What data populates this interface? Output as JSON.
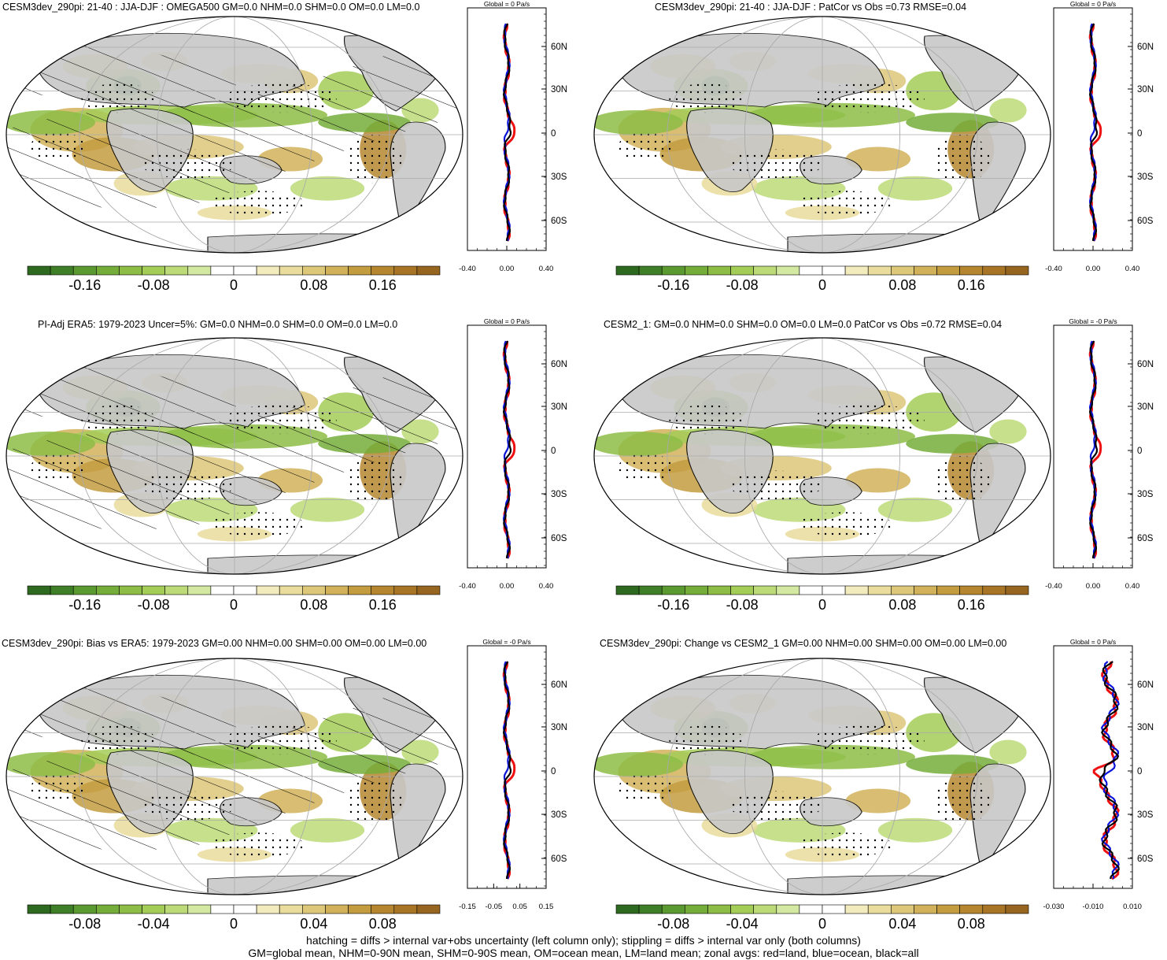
{
  "colors": {
    "palette": [
      "#2d6a1f",
      "#3f7f27",
      "#5b9a30",
      "#75ad3b",
      "#8dbd46",
      "#a3cd57",
      "#bcdb78",
      "#d3e8a0",
      "#ffffff",
      "#ffffff",
      "#f2ebbe",
      "#e9dc9c",
      "#ddc779",
      "#d1b25b",
      "#c49c40",
      "#b5862f",
      "#a87526",
      "#96651f"
    ],
    "land": "#c8c8c8",
    "red": "#ee1111",
    "blue": "#0a14d8",
    "black": "#000000"
  },
  "panels": [
    {
      "title": "CESM3dev_290pi: 21-40 : JJA-DJF : OMEGA500 GM=0.0 NHM=0.0 SHM=0.0 OM=0.0 LM=0.0",
      "zonal_title": "Global = 0 Pa/s",
      "zonal_ticks": [
        "-0.40",
        "0.00",
        "0.40"
      ],
      "cbar_ticks": [
        "-0.16",
        "-0.08",
        "0",
        "0.08",
        "0.16"
      ],
      "hatch": true
    },
    {
      "title": "CESM3dev_290pi: 21-40 : JJA-DJF : PatCor vs Obs =0.73 RMSE=0.04",
      "zonal_title": "Global = 0 Pa/s",
      "zonal_ticks": [
        "-0.40",
        "0.00",
        "0.40"
      ],
      "cbar_ticks": [
        "-0.16",
        "-0.08",
        "0",
        "0.08",
        "0.16"
      ],
      "hatch": false
    },
    {
      "title": "PI-Adj ERA5: 1979-2023 Uncer=5%: GM=0.0 NHM=0.0 SHM=0.0 OM=0.0 LM=0.0",
      "zonal_title": "Global = 0 Pa/s",
      "zonal_ticks": [
        "-0.40",
        "0.00",
        "0.40"
      ],
      "cbar_ticks": [
        "-0.16",
        "-0.08",
        "0",
        "0.08",
        "0.16"
      ],
      "hatch": true
    },
    {
      "title": "CESM2_1: GM=0.0 NHM=0.0 SHM=0.0 OM=0.0 LM=0.0 PatCor vs Obs =0.72 RMSE=0.04",
      "zonal_title": "Global = -0 Pa/s",
      "zonal_ticks": [
        "-0.40",
        "0.00",
        "0.40"
      ],
      "cbar_ticks": [
        "-0.16",
        "-0.08",
        "0",
        "0.08",
        "0.16"
      ],
      "hatch": false
    },
    {
      "title": "CESM3dev_290pi: Bias vs ERA5: 1979-2023 GM=0.00 NHM=0.00 SHM=0.00 OM=0.00 LM=0.00",
      "zonal_title": "Global = -0 Pa/s",
      "zonal_ticks": [
        "-0.15",
        "-0.05",
        "0.05",
        "0.15"
      ],
      "cbar_ticks": [
        "-0.08",
        "-0.04",
        "0",
        "0.04",
        "0.08"
      ],
      "hatch": true
    },
    {
      "title": "CESM3dev_290pi: Change vs CESM2_1 GM=0.00 NHM=0.00 SHM=0.00 OM=0.00 LM=0.00",
      "zonal_title": "Global = 0 Pa/s",
      "zonal_ticks": [
        "-0.030",
        "-0.010",
        "0.010"
      ],
      "cbar_ticks": [
        "-0.08",
        "-0.04",
        "0",
        "0.04",
        "0.08"
      ],
      "hatch": false
    }
  ],
  "lat_ticks": [
    "60N",
    "30N",
    "0",
    "30S",
    "60S"
  ],
  "footer": {
    "line1": "hatching = diffs > internal var+obs uncertainty (left column only); stippling = diffs > internal var only (both columns)",
    "line2": "GM=global mean, NHM=0-90N mean, SHM=0-90S mean, OM=ocean mean, LM=land mean; zonal avgs: red=land, blue=ocean, black=all"
  },
  "chart_data": [
    {
      "type": "heatmap",
      "title": "CESM3dev_290pi: 21-40 : JJA-DJF : OMEGA500 GM=0.0 NHM=0.0 SHM=0.0 OM=0.0 LM=0.0",
      "colorbar_ticks": [
        -0.16,
        -0.08,
        0,
        0.08,
        0.16
      ],
      "zonal_xlim": [
        -0.4,
        0.4
      ]
    },
    {
      "type": "heatmap",
      "title": "CESM3dev_290pi: 21-40 : JJA-DJF : PatCor vs Obs =0.73 RMSE=0.04",
      "colorbar_ticks": [
        -0.16,
        -0.08,
        0,
        0.08,
        0.16
      ],
      "zonal_xlim": [
        -0.4,
        0.4
      ]
    },
    {
      "type": "heatmap",
      "title": "PI-Adj ERA5: 1979-2023 Uncer=5%: GM=0.0 NHM=0.0 SHM=0.0 OM=0.0 LM=0.0",
      "colorbar_ticks": [
        -0.16,
        -0.08,
        0,
        0.08,
        0.16
      ],
      "zonal_xlim": [
        -0.4,
        0.4
      ]
    },
    {
      "type": "heatmap",
      "title": "CESM2_1: GM=0.0 NHM=0.0 SHM=0.0 OM=0.0 LM=0.0 PatCor vs Obs =0.72 RMSE=0.04",
      "colorbar_ticks": [
        -0.16,
        -0.08,
        0,
        0.08,
        0.16
      ],
      "zonal_xlim": [
        -0.4,
        0.4
      ]
    },
    {
      "type": "heatmap",
      "title": "CESM3dev_290pi: Bias vs ERA5: 1979-2023 GM=0.00 NHM=0.00 SHM=0.00 OM=0.00 LM=0.00",
      "colorbar_ticks": [
        -0.08,
        -0.04,
        0,
        0.04,
        0.08
      ],
      "zonal_xlim": [
        -0.15,
        0.15
      ]
    },
    {
      "type": "heatmap",
      "title": "CESM3dev_290pi: Change vs CESM2_1 GM=0.00 NHM=0.00 SHM=0.00 OM=0.00 LM=0.00",
      "colorbar_ticks": [
        -0.08,
        -0.04,
        0,
        0.04,
        0.08
      ],
      "zonal_xlim": [
        -0.03,
        0.01
      ]
    }
  ]
}
